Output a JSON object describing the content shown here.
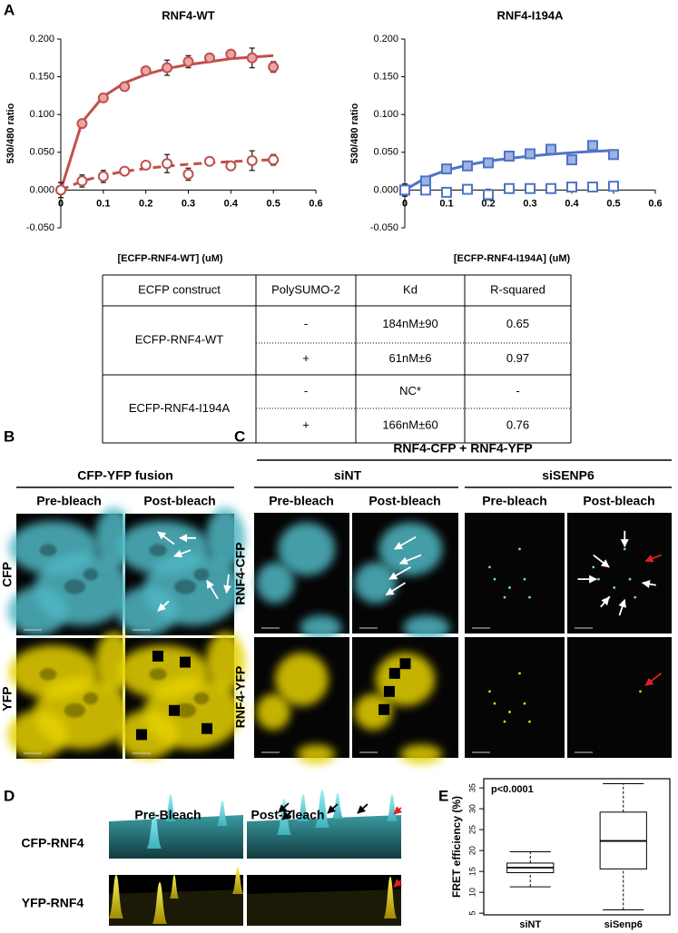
{
  "panel_labels": [
    "A",
    "B",
    "C",
    "D",
    "E"
  ],
  "chart_data": [
    {
      "type": "scatter",
      "title": "RNF4-WT",
      "x_label": "[ECFP-RNF4-WT] (uM)",
      "y_label": "530/480 ratio",
      "x": [
        0,
        0.05,
        0.1,
        0.15,
        0.2,
        0.25,
        0.3,
        0.35,
        0.4,
        0.45,
        0.5
      ],
      "series": [
        {
          "kind": "line",
          "color": "#c0504d",
          "dash": false,
          "values": [
            0,
            0.09,
            0.124,
            0.142,
            0.153,
            0.161,
            0.166,
            0.17,
            0.174,
            0.176,
            0.178
          ]
        },
        {
          "kind": "line",
          "color": "#c0504d",
          "dash": true,
          "values": [
            0,
            0.0118,
            0.0194,
            0.0247,
            0.0286,
            0.0317,
            0.0341,
            0.036,
            0.0377,
            0.039,
            0.0402
          ]
        },
        {
          "kind": "points",
          "marker": "circle",
          "color": "#c0504d",
          "fill": "#eba6a1",
          "values": [
            0,
            0.088,
            0.122,
            0.137,
            0.158,
            0.162,
            0.17,
            0.175,
            0.18,
            0.175,
            0.163
          ],
          "errors": [
            0.01,
            0.005,
            0.005,
            0.004,
            0.004,
            0.01,
            0.008,
            0.005,
            0.004,
            0.013,
            0.007
          ]
        },
        {
          "kind": "points",
          "marker": "circle",
          "color": "#c0504d",
          "fill": "#ffffff",
          "values": [
            0,
            0.012,
            0.018,
            0.025,
            0.033,
            0.035,
            0.021,
            0.038,
            0.032,
            0.039,
            0.04
          ],
          "errors": [
            0.01,
            0.008,
            0.008,
            0.005,
            0.004,
            0.012,
            0.008,
            0.005,
            0.005,
            0.013,
            0.007
          ]
        }
      ],
      "xlim": [
        0,
        0.6
      ],
      "xticks": [
        0,
        0.1,
        0.2,
        0.3,
        0.4,
        0.5,
        0.6
      ],
      "ylim": [
        -0.05,
        0.2
      ],
      "yticks": [
        {
          "value": -0.05,
          "label": "-0.050"
        },
        {
          "value": 0,
          "label": "0.000"
        },
        {
          "value": 0.05,
          "label": "0.050"
        },
        {
          "value": 0.1,
          "label": "0.100"
        },
        {
          "value": 0.15,
          "label": "0.150"
        },
        {
          "value": 0.2,
          "label": "0.200"
        }
      ]
    },
    {
      "type": "scatter",
      "title": "RNF4-I194A",
      "x_label": "[ECFP-RNF4-I194A] (uM)",
      "y_label": "530/480 ratio",
      "x": [
        0,
        0.05,
        0.1,
        0.15,
        0.2,
        0.25,
        0.3,
        0.35,
        0.4,
        0.45,
        0.5
      ],
      "series": [
        {
          "kind": "line",
          "color": "#4f74c8",
          "dash": false,
          "values": [
            0,
            0.0162,
            0.0263,
            0.0332,
            0.0383,
            0.042,
            0.045,
            0.0475,
            0.0495,
            0.0511,
            0.0525
          ]
        },
        {
          "kind": "points",
          "marker": "square",
          "color": "#4f74c8",
          "fill": "#9db3e0",
          "values": [
            0,
            0.012,
            0.028,
            0.032,
            0.036,
            0.045,
            0.048,
            0.054,
            0.04,
            0.059,
            0.047
          ],
          "errors": [
            0.008,
            0.003,
            0.003,
            0.003,
            0.003,
            0.003,
            0.003,
            0.003,
            0.003,
            0.003,
            0.003
          ]
        },
        {
          "kind": "points",
          "marker": "square",
          "color": "#4f74c8",
          "fill": "#ffffff",
          "values": [
            0,
            0,
            -0.003,
            0.001,
            -0.006,
            0.002,
            0.002,
            0.002,
            0.004,
            0.004,
            0.005
          ],
          "errors": [
            0.008,
            0.004,
            0.004,
            0.004,
            0.007,
            0.004,
            0.004,
            0.004,
            0.004,
            0.004,
            0.006
          ]
        }
      ],
      "xlim": [
        0,
        0.6
      ],
      "xticks": [
        0,
        0.1,
        0.2,
        0.3,
        0.4,
        0.5,
        0.6
      ],
      "ylim": [
        -0.05,
        0.2
      ],
      "yticks": [
        {
          "value": -0.05,
          "label": "-0.050"
        },
        {
          "value": 0,
          "label": "0.000"
        },
        {
          "value": 0.05,
          "label": "0.050"
        },
        {
          "value": 0.1,
          "label": "0.100"
        },
        {
          "value": 0.15,
          "label": "0.150"
        },
        {
          "value": 0.2,
          "label": "0.200"
        }
      ]
    },
    {
      "type": "box",
      "y_label": "FRET efficiency (%)",
      "annotation": "p<0.0001",
      "categories": [
        "siNT",
        "siSenp6"
      ],
      "values": [
        [
          11.3,
          14.7,
          15.9,
          17.0,
          19.7
        ],
        [
          5.8,
          15.6,
          22.3,
          29.2,
          36.0
        ]
      ],
      "color": "#000000",
      "ylim": [
        4.6,
        37.2
      ],
      "yticks": [
        5,
        10,
        15,
        20,
        25,
        30,
        35
      ]
    }
  ],
  "table": {
    "header": [
      "ECFP construct",
      "PolySUMO-2",
      "Kd",
      "R-squared"
    ],
    "groups": [
      {
        "construct": "ECFP-RNF4-WT",
        "rows": [
          [
            "-",
            "184nM±90",
            "0.65"
          ],
          [
            "+",
            "61nM±6",
            "0.97"
          ]
        ]
      },
      {
        "construct": "ECFP-RNF4-I194A",
        "rows": [
          [
            "-",
            "NC*",
            "-"
          ],
          [
            "+",
            "166nM±60",
            "0.76"
          ]
        ]
      }
    ]
  },
  "panel_b": {
    "title": "CFP-YFP fusion",
    "columns": [
      "Pre-bleach",
      "Post-bleach"
    ],
    "rows": [
      "CFP",
      "YFP"
    ]
  },
  "panel_c": {
    "title": "RNF4-CFP + RNF4-YFP",
    "groups": [
      {
        "name": "siNT",
        "columns": [
          "Pre-bleach",
          "Post-bleach"
        ]
      },
      {
        "name": "siSENP6",
        "columns": [
          "Pre-bleach",
          "Post-bleach"
        ]
      }
    ],
    "rows": [
      "RNF4-CFP",
      "RNF4-YFP"
    ]
  },
  "panel_d": {
    "columns": [
      "Pre-Bleach",
      "Post-Bleach"
    ],
    "rows": [
      "CFP-RNF4",
      "YFP-RNF4"
    ]
  }
}
